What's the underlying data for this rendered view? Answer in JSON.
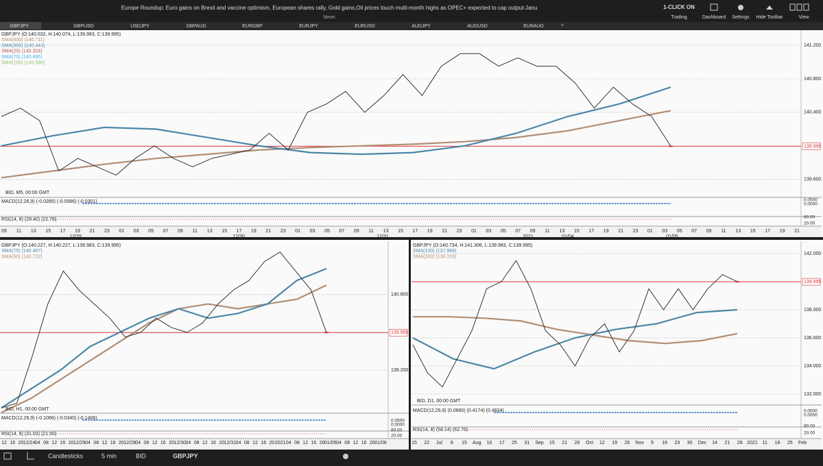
{
  "header": {
    "news": "Europe Roundup: Euro gains  on Brexit and vaccine optimism, European shares rally, Gold gains,Oil prices touch multi-month highs as OPEC+ expected to cap output-Janu",
    "news_label": "News",
    "one_click": "1-CLICK ON",
    "buttons": [
      "Trading",
      "Dashboard",
      "Settings",
      "Hide Toolbar",
      "View"
    ]
  },
  "tabs": [
    "GBPJPY",
    "GBPUSD",
    "USDJPY",
    "GBPAUD",
    "EURGBP",
    "EURJPY",
    "EURUSD",
    "AUDJPY",
    "AUDUSD",
    "EURAUD"
  ],
  "panels": [
    {
      "legend": [
        {
          "text": "GBPJPY (O:140.032, H:140.074, L:139.983, C:139.995)",
          "color": "#222222"
        },
        {
          "text": "SMA(600) (140.711)",
          "color": "#b08d74"
        },
        {
          "text": "SMA(900) (140.443)",
          "color": "#4a86a8"
        },
        {
          "text": "SMA(25) (140.324)",
          "color": "#b05050"
        },
        {
          "text": "SMA(70) (140.495)",
          "color": "#3cb4e6"
        },
        {
          "text": "SMA(100) (140.590)",
          "color": "#8fbf6a"
        }
      ],
      "feed": "BID, M5, 00:00 GMT",
      "macd": "MACD(12,26,9) (-0.0285) (-0.0586) (-0.0301)",
      "rsi": "RSI(14, 8) (28.40) (22.78)",
      "indicator_axis": [
        "0.0500",
        "0.0000",
        "80.00",
        "20.00"
      ],
      "ylim": [
        139.41,
        141.38
      ],
      "price_ticks": [
        {
          "value": 141.2,
          "label": "141.200"
        },
        {
          "value": 140.8,
          "label": "140.800"
        },
        {
          "value": 140.4,
          "label": "140.400"
        },
        {
          "value": 139.995,
          "label": "139.995"
        },
        {
          "value": 139.6,
          "label": "139.600"
        }
      ],
      "current_price": 139.995,
      "series": [
        {
          "color": "#b08d74",
          "values": [
            139.62,
            139.7,
            139.78,
            139.85,
            139.9,
            139.95,
            139.98,
            140.0,
            140.02,
            140.05,
            140.1,
            140.18,
            140.3,
            140.42
          ]
        },
        {
          "color": "#4a86a8",
          "values": [
            140.0,
            140.12,
            140.22,
            140.2,
            140.1,
            140.0,
            139.92,
            139.9,
            139.92,
            140.0,
            140.15,
            140.35,
            140.5,
            140.7
          ]
        },
        {
          "color": "#333333",
          "values": [
            140.35,
            140.45,
            140.3,
            139.7,
            139.85,
            139.75,
            139.65,
            139.85,
            140.0,
            139.85,
            139.75,
            139.85,
            139.9,
            139.95,
            140.15,
            139.95,
            140.4,
            140.5,
            140.65,
            140.4,
            140.6,
            140.85,
            140.6,
            140.95,
            141.1,
            141.1,
            140.95,
            141.05,
            140.95,
            140.95,
            140.75,
            140.45,
            140.7,
            140.5,
            140.35,
            139.995
          ]
        }
      ],
      "time_labels": [
        "09",
        "11",
        "13",
        "15",
        "17",
        "19",
        "21",
        "23",
        "01",
        "03",
        "05",
        "07",
        "09",
        "11",
        "13",
        "15",
        "17",
        "19",
        "21",
        "23",
        "01",
        "03",
        "05",
        "07",
        "09",
        "11",
        "13",
        "15",
        "17",
        "19",
        "21",
        "23",
        "01",
        "03",
        "05",
        "07",
        "09",
        "11",
        "13",
        "15",
        "17",
        "19",
        "21",
        "23",
        "01",
        "03",
        "05",
        "07",
        "09",
        "11",
        "13",
        "15",
        "17",
        "19",
        "21"
      ],
      "date_labels": [
        "12/29",
        "12/30",
        "12/31",
        "2021",
        "01/04",
        "01/05"
      ]
    },
    {
      "legend": [
        {
          "text": "GBPJPY (O:140.227, H:140.227, L:139.983, C:139.995)",
          "color": "#222222"
        },
        {
          "text": "SMA(75) (140.457)",
          "color": "#4a86a8"
        },
        {
          "text": "SMA(50) (140.722)",
          "color": "#b08d74"
        }
      ],
      "feed": "BID, H1, 00:00 GMT",
      "macd": "MACD(12,26,9) (-0.1066) (-0.0340) (-0.1406)",
      "rsi": "RSI(14, 8) (31.03) (21.50)",
      "indicator_axis": [
        "0.0500",
        "0.0000",
        "80.00",
        "20.00"
      ],
      "ylim": [
        138.33,
        141.93
      ],
      "price_ticks": [
        {
          "value": 140.8,
          "label": "140.800"
        },
        {
          "value": 139.995,
          "label": "139.995"
        },
        {
          "value": 139.2,
          "label": "139.200"
        }
      ],
      "current_price": 139.995,
      "series": [
        {
          "color": "#b08d74",
          "values": [
            138.3,
            138.6,
            139.0,
            139.4,
            139.8,
            140.2,
            140.5,
            140.6,
            140.5,
            140.6,
            140.7,
            141.0
          ]
        },
        {
          "color": "#4a86a8",
          "values": [
            138.4,
            138.8,
            139.2,
            139.7,
            140.0,
            140.3,
            140.5,
            140.3,
            140.4,
            140.6,
            141.1,
            141.35
          ]
        },
        {
          "color": "#333333",
          "values": [
            138.4,
            138.5,
            139.5,
            140.6,
            141.3,
            140.9,
            140.6,
            140.3,
            139.9,
            140.0,
            140.3,
            140.1,
            140.0,
            140.2,
            140.6,
            140.9,
            141.1,
            141.5,
            141.7,
            141.3,
            140.9,
            139.995
          ]
        }
      ],
      "time_labels": [
        "12",
        "16",
        "20",
        "12/24",
        "04",
        "08",
        "12",
        "16",
        "20",
        "12/25",
        "04",
        "08",
        "12",
        "16",
        "20",
        "12/29",
        "04",
        "08",
        "12",
        "16",
        "20",
        "12/30",
        "04",
        "08",
        "12",
        "16",
        "20",
        "12/31",
        "04",
        "08",
        "12",
        "16",
        "20",
        "2021",
        "04",
        "08",
        "12",
        "16",
        "20",
        "01/05",
        "04",
        "08",
        "12",
        "16",
        "20",
        "01/06"
      ],
      "date_labels": []
    },
    {
      "legend": [
        {
          "text": "GBPJPY (O:140.734, H:141.306, L:139.983, C:139.995)",
          "color": "#222222"
        },
        {
          "text": "SMA(100) (137.968)",
          "color": "#4a86a8"
        },
        {
          "text": "SMA(200) (136.200)",
          "color": "#b08d74"
        }
      ],
      "feed": "BID, D1, 00:00 GMT",
      "macd": "MACD(12,26,9) (0.0660) (0.4174) (0.4834)",
      "rsi": "RSI(14, 8) (58.14) (62.76)",
      "indicator_axis": [
        "0.0500",
        "0.0000",
        "80.00",
        "20.00"
      ],
      "ylim": [
        131.51,
        142.88
      ],
      "price_ticks": [
        {
          "value": 142,
          "label": "142.000"
        },
        {
          "value": 139.995,
          "label": "139.995"
        },
        {
          "value": 138,
          "label": "138.000"
        },
        {
          "value": 136,
          "label": "136.000"
        },
        {
          "value": 134,
          "label": "134.000"
        },
        {
          "value": 132,
          "label": "132.000"
        }
      ],
      "current_price": 139.995,
      "series": [
        {
          "color": "#b08d74",
          "values": [
            137.5,
            137.5,
            137.4,
            137.2,
            136.6,
            136.2,
            135.8,
            135.6,
            135.8,
            136.3
          ]
        },
        {
          "color": "#4a86a8",
          "values": [
            136.0,
            134.5,
            133.8,
            135.0,
            136.0,
            136.6,
            137.0,
            137.8,
            138.0
          ]
        },
        {
          "color": "#333333",
          "values": [
            135.5,
            133.5,
            132.5,
            134.5,
            136.5,
            139.5,
            140.0,
            141.5,
            139.5,
            136.5,
            135.5,
            134.0,
            136.0,
            137.0,
            135.0,
            136.5,
            139.5,
            138.0,
            139.5,
            138.0,
            139.5,
            140.5,
            139.995
          ]
        }
      ],
      "time_labels": [
        "15",
        "22",
        "Jul",
        "8",
        "15",
        "Aug",
        "10",
        "17",
        "25",
        "31",
        "Sep",
        "15",
        "21",
        "28",
        "Oct",
        "12",
        "19",
        "26",
        "Nov",
        "9",
        "16",
        "23",
        "30",
        "Dec",
        "14",
        "21",
        "28",
        "2021",
        "11",
        "18",
        "25",
        "Feb"
      ],
      "date_labels": []
    }
  ],
  "toolbar": {
    "chart_type": "Candlesticks",
    "interval": "5 min",
    "side": "BID",
    "symbol": "GBPJPY"
  }
}
